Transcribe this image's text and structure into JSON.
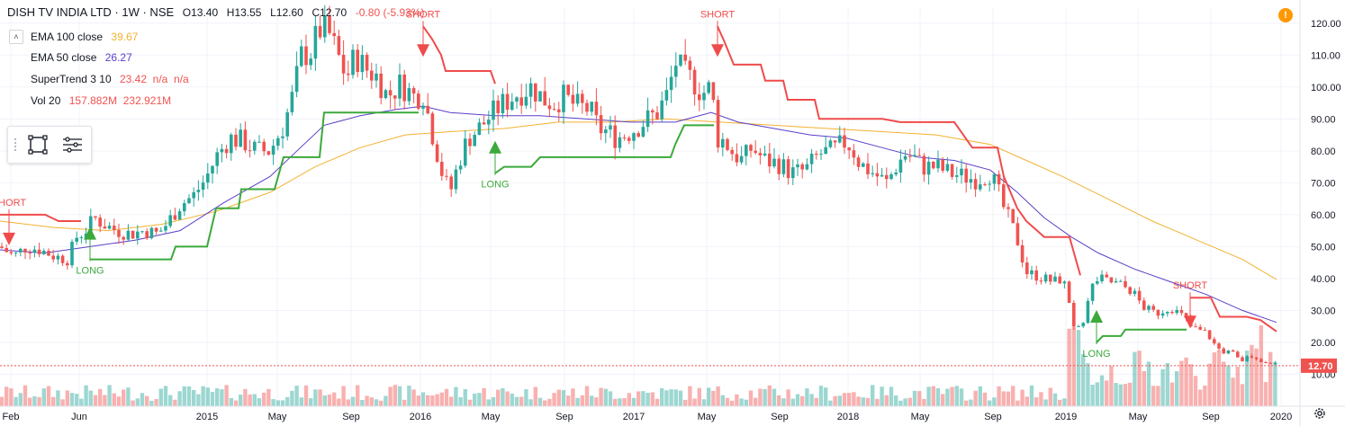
{
  "header": {
    "symbol": "DISH TV INDIA LTD · 1W · NSE",
    "open": "O13.40",
    "high": "H13.55",
    "low": "L12.60",
    "close": "C12.70",
    "change": "-0.80 (-5.93%)"
  },
  "indicators": [
    {
      "name": "EMA 100 close",
      "value": "39.67",
      "color": "#f2b231"
    },
    {
      "name": "EMA 50 close",
      "value": "26.27",
      "color": "#5b3ec8"
    },
    {
      "name": "SuperTrend 3 10",
      "value": "23.42  n/a  n/a",
      "color": "#ef5350"
    },
    {
      "name": "Vol 20",
      "value": "157.882M  232.921M",
      "color": "#ef5350"
    }
  ],
  "colors": {
    "up": "#26a69a",
    "down": "#ef5350",
    "ema100": "#f2b231",
    "ema50": "#5b3ec8",
    "st_up": "#3ba93b",
    "st_down": "#f04b4b",
    "grid": "#f0f3fa",
    "axis_text": "#131722"
  },
  "chart_data": {
    "type": "candlestick",
    "title": "DISH TV INDIA LTD · 1W · NSE",
    "ylim": [
      0,
      125
    ],
    "y_ticks": [
      10,
      20,
      30,
      40,
      50,
      60,
      70,
      80,
      90,
      100,
      110,
      120
    ],
    "y_tick_labels": [
      "10.00",
      "20.00",
      "30.00",
      "40.00",
      "50.00",
      "60.00",
      "70.00",
      "80.00",
      "90.00",
      "100.00",
      "110.00",
      "120.00"
    ],
    "x_range": [
      0,
      1444
    ],
    "x_ticks": [
      {
        "label": "Feb",
        "x": 12
      },
      {
        "label": "Jun",
        "x": 88
      },
      {
        "label": "2015",
        "x": 230
      },
      {
        "label": "May",
        "x": 308
      },
      {
        "label": "Sep",
        "x": 390
      },
      {
        "label": "2016",
        "x": 467
      },
      {
        "label": "May",
        "x": 545
      },
      {
        "label": "Sep",
        "x": 627
      },
      {
        "label": "2017",
        "x": 704
      },
      {
        "label": "May",
        "x": 785
      },
      {
        "label": "Sep",
        "x": 866
      },
      {
        "label": "2018",
        "x": 942
      },
      {
        "label": "May",
        "x": 1022
      },
      {
        "label": "Sep",
        "x": 1103
      },
      {
        "label": "2019",
        "x": 1184
      },
      {
        "label": "May",
        "x": 1264
      },
      {
        "label": "Sep",
        "x": 1345
      },
      {
        "label": "2020",
        "x": 1423
      }
    ],
    "last_price": {
      "value": 12.7,
      "label": "12.70"
    },
    "close_path": [
      [
        0,
        50
      ],
      [
        15,
        47
      ],
      [
        30,
        50
      ],
      [
        45,
        49
      ],
      [
        60,
        47
      ],
      [
        75,
        46
      ],
      [
        85,
        53
      ],
      [
        95,
        55
      ],
      [
        105,
        59
      ],
      [
        115,
        57
      ],
      [
        130,
        55
      ],
      [
        145,
        54
      ],
      [
        160,
        55
      ],
      [
        175,
        54
      ],
      [
        185,
        57
      ],
      [
        200,
        63
      ],
      [
        215,
        66
      ],
      [
        228,
        71
      ],
      [
        240,
        78
      ],
      [
        255,
        84
      ],
      [
        270,
        83
      ],
      [
        285,
        80
      ],
      [
        300,
        80
      ],
      [
        315,
        88
      ],
      [
        325,
        97
      ],
      [
        335,
        110
      ],
      [
        345,
        111
      ],
      [
        355,
        118
      ],
      [
        365,
        117
      ],
      [
        375,
        110
      ],
      [
        385,
        103
      ],
      [
        395,
        110
      ],
      [
        405,
        106
      ],
      [
        420,
        103
      ],
      [
        430,
        97
      ],
      [
        445,
        101
      ],
      [
        460,
        97
      ],
      [
        470,
        98
      ],
      [
        478,
        88
      ],
      [
        485,
        80
      ],
      [
        492,
        72
      ],
      [
        500,
        67
      ],
      [
        510,
        77
      ],
      [
        520,
        84
      ],
      [
        532,
        87
      ],
      [
        545,
        91
      ],
      [
        555,
        94
      ],
      [
        565,
        96
      ],
      [
        575,
        98
      ],
      [
        590,
        100
      ],
      [
        605,
        96
      ],
      [
        615,
        95
      ],
      [
        625,
        97
      ],
      [
        640,
        94
      ],
      [
        655,
        93
      ],
      [
        665,
        87
      ],
      [
        675,
        86
      ],
      [
        685,
        84
      ],
      [
        700,
        86
      ],
      [
        715,
        89
      ],
      [
        730,
        92
      ],
      [
        742,
        98
      ],
      [
        750,
        108
      ],
      [
        760,
        104
      ],
      [
        770,
        102
      ],
      [
        780,
        98
      ],
      [
        790,
        100
      ],
      [
        797,
        84
      ],
      [
        805,
        83
      ],
      [
        815,
        79
      ],
      [
        825,
        77
      ],
      [
        835,
        81
      ],
      [
        850,
        77
      ],
      [
        865,
        76
      ],
      [
        880,
        73
      ],
      [
        895,
        74
      ],
      [
        910,
        79
      ],
      [
        925,
        80
      ],
      [
        940,
        83
      ],
      [
        948,
        80
      ],
      [
        955,
        76
      ],
      [
        965,
        74
      ],
      [
        975,
        72
      ],
      [
        985,
        70
      ],
      [
        995,
        75
      ],
      [
        1005,
        79
      ],
      [
        1015,
        78
      ],
      [
        1025,
        75
      ],
      [
        1040,
        75
      ],
      [
        1055,
        73
      ],
      [
        1070,
        72
      ],
      [
        1085,
        71
      ],
      [
        1100,
        73
      ],
      [
        1108,
        68
      ],
      [
        1115,
        62
      ],
      [
        1122,
        58
      ],
      [
        1130,
        52
      ],
      [
        1140,
        42
      ],
      [
        1150,
        41
      ],
      [
        1160,
        40
      ],
      [
        1170,
        39
      ],
      [
        1180,
        40
      ],
      [
        1187,
        34
      ],
      [
        1193,
        24
      ],
      [
        1198,
        24
      ],
      [
        1205,
        28
      ],
      [
        1212,
        37
      ],
      [
        1220,
        40
      ],
      [
        1232,
        39
      ],
      [
        1245,
        38
      ],
      [
        1258,
        36
      ],
      [
        1270,
        31
      ],
      [
        1285,
        29
      ],
      [
        1300,
        31
      ],
      [
        1315,
        28
      ],
      [
        1322,
        25
      ],
      [
        1330,
        24
      ],
      [
        1340,
        23
      ],
      [
        1350,
        19
      ],
      [
        1358,
        17
      ],
      [
        1368,
        17
      ],
      [
        1378,
        14
      ],
      [
        1390,
        16
      ],
      [
        1400,
        14
      ],
      [
        1410,
        14
      ],
      [
        1418,
        12.7
      ]
    ],
    "ema50": [
      [
        0,
        49
      ],
      [
        50,
        48
      ],
      [
        100,
        50
      ],
      [
        150,
        52
      ],
      [
        200,
        55
      ],
      [
        250,
        64
      ],
      [
        300,
        72
      ],
      [
        330,
        80
      ],
      [
        360,
        88
      ],
      [
        400,
        91
      ],
      [
        440,
        93
      ],
      [
        470,
        94
      ],
      [
        500,
        92
      ],
      [
        550,
        91
      ],
      [
        600,
        91
      ],
      [
        650,
        90
      ],
      [
        700,
        89
      ],
      [
        750,
        89
      ],
      [
        790,
        92
      ],
      [
        820,
        89
      ],
      [
        860,
        87
      ],
      [
        900,
        85
      ],
      [
        940,
        84
      ],
      [
        980,
        81
      ],
      [
        1020,
        78
      ],
      [
        1060,
        77
      ],
      [
        1100,
        74
      ],
      [
        1130,
        67
      ],
      [
        1160,
        59
      ],
      [
        1190,
        53
      ],
      [
        1220,
        48
      ],
      [
        1260,
        43
      ],
      [
        1300,
        39
      ],
      [
        1340,
        35
      ],
      [
        1380,
        30
      ],
      [
        1418,
        26.27
      ]
    ],
    "ema100": [
      [
        0,
        58
      ],
      [
        60,
        56
      ],
      [
        120,
        55
      ],
      [
        180,
        57
      ],
      [
        240,
        61
      ],
      [
        300,
        67
      ],
      [
        350,
        75
      ],
      [
        400,
        81
      ],
      [
        450,
        85
      ],
      [
        500,
        86
      ],
      [
        560,
        87
      ],
      [
        620,
        89
      ],
      [
        680,
        89
      ],
      [
        740,
        90
      ],
      [
        800,
        89
      ],
      [
        860,
        88
      ],
      [
        920,
        87
      ],
      [
        980,
        86
      ],
      [
        1040,
        85
      ],
      [
        1100,
        82
      ],
      [
        1140,
        77
      ],
      [
        1180,
        72
      ],
      [
        1230,
        65
      ],
      [
        1280,
        58
      ],
      [
        1330,
        52
      ],
      [
        1380,
        46
      ],
      [
        1418,
        39.67
      ]
    ],
    "supertrend": [
      {
        "trend": "down",
        "points": [
          [
            0,
            60
          ],
          [
            50,
            60
          ],
          [
            65,
            58
          ],
          [
            90,
            58
          ]
        ]
      },
      {
        "trend": "up",
        "points": [
          [
            100,
            46
          ],
          [
            190,
            46
          ],
          [
            195,
            50
          ],
          [
            230,
            50
          ],
          [
            240,
            62
          ],
          [
            265,
            62
          ],
          [
            268,
            68
          ],
          [
            305,
            68
          ],
          [
            315,
            78
          ],
          [
            355,
            78
          ],
          [
            360,
            92
          ],
          [
            465,
            92
          ]
        ]
      },
      {
        "trend": "down",
        "points": [
          [
            470,
            119
          ],
          [
            480,
            115
          ],
          [
            490,
            110
          ],
          [
            495,
            105
          ],
          [
            545,
            105
          ],
          [
            550,
            101
          ]
        ]
      },
      {
        "trend": "up",
        "points": [
          [
            550,
            73
          ],
          [
            560,
            75
          ],
          [
            590,
            75
          ],
          [
            600,
            78
          ],
          [
            745,
            78
          ],
          [
            750,
            82
          ],
          [
            760,
            88
          ],
          [
            793,
            88
          ]
        ]
      },
      {
        "trend": "down",
        "points": [
          [
            797,
            119
          ],
          [
            805,
            114
          ],
          [
            815,
            107
          ],
          [
            845,
            107
          ],
          [
            850,
            102
          ],
          [
            870,
            102
          ],
          [
            875,
            96
          ],
          [
            905,
            96
          ],
          [
            910,
            90
          ],
          [
            980,
            90
          ],
          [
            1000,
            89
          ],
          [
            1060,
            89
          ],
          [
            1070,
            85
          ],
          [
            1080,
            81
          ],
          [
            1108,
            81
          ],
          [
            1115,
            72
          ],
          [
            1130,
            62
          ],
          [
            1140,
            58
          ],
          [
            1160,
            53
          ],
          [
            1188,
            53
          ],
          [
            1200,
            41
          ]
        ]
      },
      {
        "trend": "up",
        "points": [
          [
            1218,
            20
          ],
          [
            1225,
            22
          ],
          [
            1245,
            22
          ],
          [
            1250,
            24
          ],
          [
            1318,
            24
          ]
        ]
      },
      {
        "trend": "down",
        "points": [
          [
            1322,
            34
          ],
          [
            1345,
            34
          ],
          [
            1355,
            28
          ],
          [
            1385,
            28
          ],
          [
            1400,
            27
          ],
          [
            1418,
            23.42
          ]
        ]
      }
    ],
    "signals": [
      {
        "label": "SHORT",
        "type": "short",
        "x": 10,
        "price": 60
      },
      {
        "label": "LONG",
        "type": "long",
        "x": 100,
        "price": 46
      },
      {
        "label": "SHORT",
        "type": "short",
        "x": 470,
        "price": 119
      },
      {
        "label": "LONG",
        "type": "long",
        "x": 550,
        "price": 73
      },
      {
        "label": "SHORT",
        "type": "short",
        "x": 797,
        "price": 119
      },
      {
        "label": "LONG",
        "type": "long",
        "x": 1218,
        "price": 20
      },
      {
        "label": "SHORT",
        "type": "short",
        "x": 1322,
        "price": 34
      }
    ],
    "volume_scale": {
      "max_price_height": 19
    }
  }
}
